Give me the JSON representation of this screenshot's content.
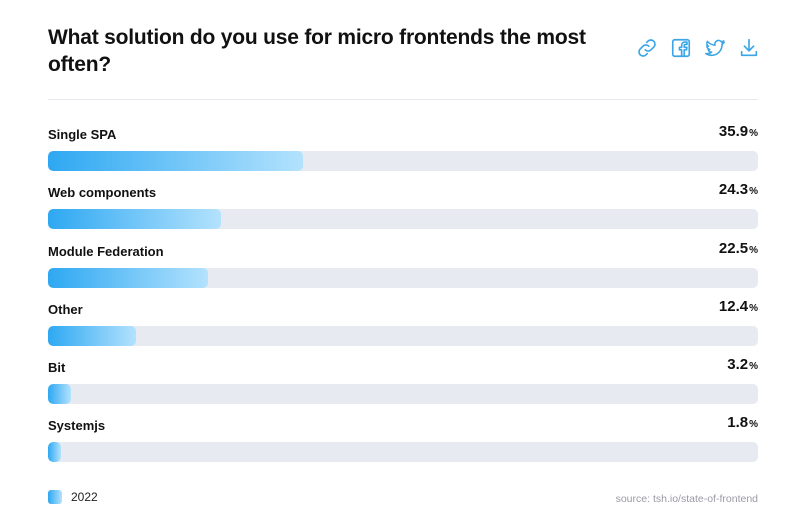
{
  "header": {
    "title": "What solution do you use for micro frontends the most often?"
  },
  "actions": [
    {
      "name": "link-icon",
      "label": "link"
    },
    {
      "name": "facebook-icon",
      "label": "facebook"
    },
    {
      "name": "twitter-icon",
      "label": "twitter"
    },
    {
      "name": "download-icon",
      "label": "download"
    }
  ],
  "colors": {
    "accent": "#2ea8f2",
    "accent_light": "#b3e2fd",
    "track": "#e8eaf1",
    "icon": "#3aa6e6"
  },
  "chart_data": {
    "type": "bar",
    "orientation": "horizontal",
    "title": "What solution do you use for micro frontends the most often?",
    "categories": [
      "Single SPA",
      "Web components",
      "Module Federation",
      "Other",
      "Bit",
      "Systemjs"
    ],
    "series": [
      {
        "name": "2022",
        "values": [
          35.9,
          24.3,
          22.5,
          12.4,
          3.2,
          1.8
        ]
      }
    ],
    "unit": "%",
    "xlim": [
      0,
      100
    ],
    "grid": false,
    "legend": "bottom-left"
  },
  "legend": {
    "label": "2022"
  },
  "footer": {
    "source": "source: tsh.io/state-of-frontend"
  }
}
